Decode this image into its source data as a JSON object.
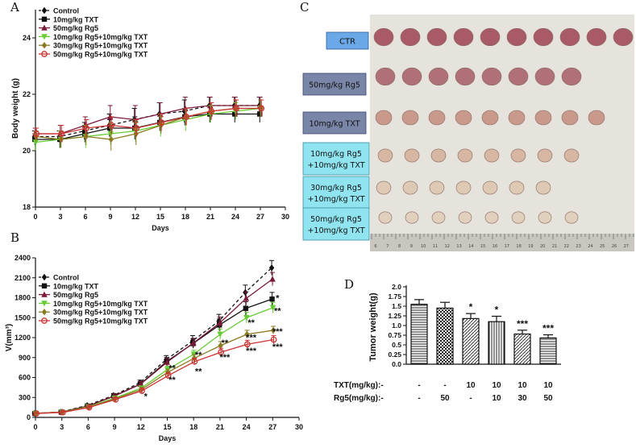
{
  "chart_data": [
    {
      "id": "A",
      "type": "line",
      "panel_label": "A",
      "xlabel": "Days",
      "ylabel": "Body weight (g)",
      "xlim": [
        0,
        30
      ],
      "ylim": [
        18,
        25
      ],
      "x_ticks": [
        0,
        3,
        6,
        9,
        12,
        15,
        18,
        21,
        24,
        27,
        30
      ],
      "y_ticks": [
        18,
        20,
        22,
        24
      ],
      "x": [
        0,
        3,
        6,
        9,
        12,
        15,
        18,
        21,
        24,
        27
      ],
      "series": [
        {
          "name": "Control",
          "color": "#111111",
          "dashed": true,
          "marker": "diamond",
          "values": [
            20.5,
            20.5,
            20.7,
            20.9,
            21.1,
            21.3,
            21.4,
            21.6,
            21.6,
            21.6
          ],
          "errors": [
            0.2,
            0.2,
            0.3,
            0.4,
            0.4,
            0.4,
            0.4,
            0.3,
            0.3,
            0.3
          ]
        },
        {
          "name": "10mg/kg TXT",
          "color": "#111111",
          "dashed": false,
          "marker": "square",
          "values": [
            20.4,
            20.4,
            20.6,
            20.8,
            20.8,
            21.0,
            21.2,
            21.3,
            21.3,
            21.3
          ],
          "errors": [
            0.2,
            0.3,
            0.3,
            0.3,
            0.4,
            0.3,
            0.3,
            0.3,
            0.3,
            0.3
          ]
        },
        {
          "name": "50mg/kg Rg5",
          "color": "#7b1a36",
          "dashed": false,
          "marker": "triangle",
          "values": [
            20.6,
            20.6,
            20.9,
            21.2,
            21.1,
            21.3,
            21.5,
            21.6,
            21.6,
            21.6
          ],
          "errors": [
            0.2,
            0.3,
            0.3,
            0.4,
            0.5,
            0.4,
            0.4,
            0.3,
            0.3,
            0.3
          ]
        },
        {
          "name": "10mg/kg Rg5+10mg/kg TXT",
          "color": "#66cc33",
          "dashed": false,
          "marker": "triangle-down",
          "values": [
            20.3,
            20.4,
            20.5,
            20.6,
            20.7,
            20.9,
            21.1,
            21.3,
            21.4,
            21.5
          ],
          "errors": [
            0.3,
            0.3,
            0.4,
            0.4,
            0.4,
            0.4,
            0.4,
            0.3,
            0.3,
            0.3
          ]
        },
        {
          "name": "30mg/kg Rg5+10mg/kg TXT",
          "color": "#8a7a22",
          "dashed": false,
          "marker": "diamond",
          "values": [
            20.5,
            20.4,
            20.5,
            20.4,
            20.6,
            20.9,
            21.2,
            21.4,
            21.5,
            21.5
          ],
          "errors": [
            0.2,
            0.3,
            0.3,
            0.4,
            0.4,
            0.3,
            0.3,
            0.3,
            0.3,
            0.3
          ]
        },
        {
          "name": "50mg/kg Rg5+10mg/kg TXT",
          "color": "#cc3333",
          "dashed": false,
          "marker": "circle",
          "values": [
            20.6,
            20.6,
            20.8,
            20.9,
            20.8,
            21.0,
            21.2,
            21.4,
            21.5,
            21.5
          ],
          "errors": [
            0.2,
            0.3,
            0.3,
            0.3,
            0.3,
            0.3,
            0.3,
            0.3,
            0.3,
            0.3
          ]
        }
      ]
    },
    {
      "id": "B",
      "type": "line",
      "panel_label": "B",
      "xlabel": "Days",
      "ylabel": "V(mm³)",
      "xlim": [
        0,
        30
      ],
      "ylim": [
        0,
        2400
      ],
      "x_ticks": [
        0,
        3,
        6,
        9,
        12,
        15,
        18,
        21,
        24,
        27,
        30
      ],
      "y_ticks": [
        0,
        300,
        600,
        900,
        1200,
        1500,
        1800,
        2100,
        2400
      ],
      "x": [
        0,
        3,
        6,
        9,
        12,
        15,
        18,
        21,
        24,
        27
      ],
      "series": [
        {
          "name": "Control",
          "color": "#111111",
          "dashed": true,
          "marker": "diamond",
          "values": [
            60,
            80,
            180,
            330,
            520,
            870,
            1150,
            1450,
            1880,
            2250
          ],
          "errors": [
            10,
            15,
            20,
            30,
            40,
            60,
            80,
            100,
            110,
            110
          ]
        },
        {
          "name": "10mg/kg TXT",
          "color": "#111111",
          "dashed": false,
          "marker": "square",
          "values": [
            60,
            80,
            170,
            320,
            500,
            840,
            1110,
            1390,
            1640,
            1780
          ],
          "errors": [
            10,
            15,
            20,
            30,
            40,
            60,
            70,
            90,
            100,
            100
          ]
        },
        {
          "name": "50mg/kg Rg5",
          "color": "#7b1a36",
          "dashed": false,
          "marker": "triangle",
          "values": [
            60,
            80,
            170,
            320,
            500,
            830,
            1120,
            1420,
            1790,
            2080
          ],
          "errors": [
            10,
            15,
            20,
            30,
            40,
            60,
            70,
            90,
            100,
            100
          ]
        },
        {
          "name": "10mg/kg Rg5+10mg/kg TXT",
          "color": "#66cc33",
          "dashed": false,
          "marker": "triangle-down",
          "values": [
            60,
            80,
            160,
            290,
            440,
            720,
            950,
            1250,
            1500,
            1650
          ],
          "errors": [
            10,
            15,
            20,
            25,
            35,
            50,
            60,
            80,
            80,
            80
          ]
        },
        {
          "name": "30mg/kg Rg5+10mg/kg TXT",
          "color": "#8a7a22",
          "dashed": false,
          "marker": "diamond",
          "values": [
            60,
            80,
            155,
            280,
            420,
            680,
            890,
            1080,
            1250,
            1310
          ],
          "errors": [
            10,
            15,
            20,
            25,
            35,
            45,
            55,
            60,
            60,
            60
          ]
        },
        {
          "name": "50mg/kg Rg5+10mg/kg TXT",
          "color": "#cc3333",
          "dashed": false,
          "marker": "circle",
          "values": [
            60,
            75,
            150,
            270,
            400,
            630,
            840,
            980,
            1100,
            1170
          ],
          "errors": [
            10,
            15,
            20,
            25,
            35,
            45,
            50,
            60,
            60,
            60
          ]
        }
      ],
      "annotations": [
        {
          "x": 12,
          "y": 270,
          "text": "*",
          "color": "#cc3333"
        },
        {
          "x": 15,
          "y": 520,
          "text": "**",
          "color": "#cc3333"
        },
        {
          "x": 15,
          "y": 700,
          "text": "**",
          "color": "#66cc33"
        },
        {
          "x": 18,
          "y": 650,
          "text": "**",
          "color": "#cc3333"
        },
        {
          "x": 18,
          "y": 900,
          "text": "**",
          "color": "#66cc33"
        },
        {
          "x": 21,
          "y": 860,
          "text": "***",
          "color": "#cc3333"
        },
        {
          "x": 21,
          "y": 1080,
          "text": "**",
          "color": "#8a7a22"
        },
        {
          "x": 24,
          "y": 960,
          "text": "***",
          "color": "#cc3333"
        },
        {
          "x": 24,
          "y": 1160,
          "text": "***",
          "color": "#8a7a22"
        },
        {
          "x": 24,
          "y": 1380,
          "text": "**",
          "color": "#66cc33"
        },
        {
          "x": 27,
          "y": 1020,
          "text": "***",
          "color": "#cc3333"
        },
        {
          "x": 27,
          "y": 1250,
          "text": "***",
          "color": "#8a7a22"
        },
        {
          "x": 27,
          "y": 1560,
          "text": "**",
          "color": "#66cc33"
        },
        {
          "x": 27,
          "y": 1750,
          "text": "*",
          "color": "#111111"
        }
      ]
    },
    {
      "id": "D",
      "type": "bar",
      "panel_label": "D",
      "ylabel": "Tumor weight(g)",
      "ylim": [
        0,
        2.0
      ],
      "y_ticks": [
        "0.0",
        "0.25",
        "0.50",
        "0.75",
        "1.00",
        "1.25",
        "1.50",
        "1.75",
        "2.00"
      ],
      "y_tick_labels": [
        "0.0",
        "0.25",
        "0.5",
        "0.75",
        "1.0",
        "1.25",
        "1.5",
        "1.75",
        "2.0"
      ],
      "values": [
        1.55,
        1.45,
        1.18,
        1.1,
        0.78,
        0.68
      ],
      "errors": [
        0.12,
        0.15,
        0.13,
        0.14,
        0.1,
        0.08
      ],
      "patterns": [
        "hlines",
        "checker",
        "diag",
        "vlines",
        "diag",
        "hlines"
      ],
      "significance": [
        {
          "index": 2,
          "text": "*",
          "color": "#111111"
        },
        {
          "index": 3,
          "text": "*",
          "color": "#66cc33"
        },
        {
          "index": 4,
          "text": "***",
          "color": "#8a7a22"
        },
        {
          "index": 5,
          "text": "***",
          "color": "#cc3333"
        }
      ],
      "row_labels": [
        "TXT(mg/kg):-",
        "Rg5(mg/kg):-"
      ],
      "txt_row": [
        "-",
        "-",
        "10",
        "10",
        "10",
        "10"
      ],
      "rg5_row": [
        "-",
        "50",
        "-",
        "10",
        "30",
        "50"
      ]
    }
  ],
  "photo_panel": {
    "panel_label": "C",
    "labels": [
      "CTR",
      "50mg/kg Rg5",
      "10mg/kg TXT",
      "10mg/kg Rg5\n+10mg/kg TXT",
      "30mg/kg Rg5\n+10mg/kg TXT",
      "50mg/kg Rg5\n+10mg/kg TXT"
    ],
    "tumor_counts": [
      10,
      8,
      9,
      8,
      7,
      8
    ],
    "ruler_numbers": [
      "6",
      "7",
      "8",
      "9",
      "10",
      "11",
      "12",
      "13",
      "14",
      "15",
      "16",
      "17",
      "18",
      "19",
      "20",
      "21",
      "22",
      "23",
      "24",
      "25",
      "26",
      "27"
    ]
  }
}
